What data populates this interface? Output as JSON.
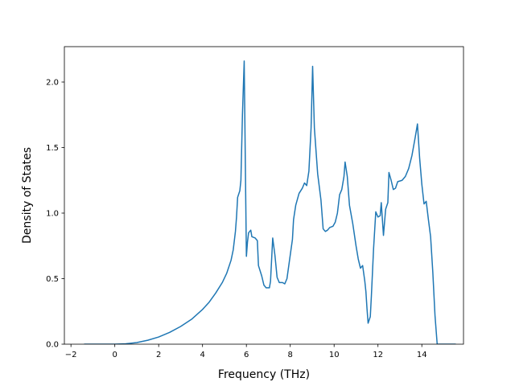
{
  "chart_data": {
    "type": "line",
    "title": "",
    "xlabel": "Frequency (THz)",
    "ylabel": "Density of States",
    "xlim": [
      -2.3,
      15.9
    ],
    "ylim": [
      0.0,
      2.27
    ],
    "xticks": [
      -2,
      0,
      2,
      4,
      6,
      8,
      10,
      12,
      14
    ],
    "xtick_labels": [
      "−2",
      "0",
      "2",
      "4",
      "6",
      "8",
      "10",
      "12",
      "14"
    ],
    "yticks": [
      0.0,
      0.5,
      1.0,
      1.5,
      2.0
    ],
    "ytick_labels": [
      "0.0",
      "0.5",
      "1.0",
      "1.5",
      "2.0"
    ],
    "grid": false,
    "legend": "none",
    "series": [
      {
        "color": "#1f77b4",
        "points": [
          [
            -1.4,
            0.0
          ],
          [
            -0.5,
            0.0
          ],
          [
            0.0,
            0.0
          ],
          [
            0.5,
            0.003
          ],
          [
            1.0,
            0.012
          ],
          [
            1.5,
            0.03
          ],
          [
            2.0,
            0.055
          ],
          [
            2.5,
            0.09
          ],
          [
            3.0,
            0.135
          ],
          [
            3.5,
            0.19
          ],
          [
            4.0,
            0.265
          ],
          [
            4.3,
            0.32
          ],
          [
            4.6,
            0.39
          ],
          [
            4.9,
            0.47
          ],
          [
            5.1,
            0.54
          ],
          [
            5.3,
            0.64
          ],
          [
            5.4,
            0.72
          ],
          [
            5.5,
            0.86
          ],
          [
            5.55,
            0.97
          ],
          [
            5.6,
            1.12
          ],
          [
            5.7,
            1.17
          ],
          [
            5.75,
            1.25
          ],
          [
            5.82,
            1.75
          ],
          [
            5.9,
            2.16
          ],
          [
            5.95,
            1.4
          ],
          [
            6.0,
            0.67
          ],
          [
            6.05,
            0.78
          ],
          [
            6.1,
            0.85
          ],
          [
            6.2,
            0.87
          ],
          [
            6.25,
            0.82
          ],
          [
            6.4,
            0.81
          ],
          [
            6.5,
            0.79
          ],
          [
            6.55,
            0.6
          ],
          [
            6.7,
            0.52
          ],
          [
            6.8,
            0.45
          ],
          [
            6.9,
            0.43
          ],
          [
            7.0,
            0.43
          ],
          [
            7.05,
            0.43
          ],
          [
            7.1,
            0.48
          ],
          [
            7.2,
            0.81
          ],
          [
            7.3,
            0.68
          ],
          [
            7.4,
            0.51
          ],
          [
            7.5,
            0.47
          ],
          [
            7.65,
            0.47
          ],
          [
            7.75,
            0.46
          ],
          [
            7.85,
            0.5
          ],
          [
            8.0,
            0.68
          ],
          [
            8.1,
            0.8
          ],
          [
            8.15,
            0.95
          ],
          [
            8.25,
            1.06
          ],
          [
            8.4,
            1.15
          ],
          [
            8.55,
            1.19
          ],
          [
            8.65,
            1.23
          ],
          [
            8.75,
            1.21
          ],
          [
            8.85,
            1.32
          ],
          [
            8.95,
            1.65
          ],
          [
            9.02,
            2.12
          ],
          [
            9.1,
            1.65
          ],
          [
            9.25,
            1.3
          ],
          [
            9.4,
            1.1
          ],
          [
            9.5,
            0.88
          ],
          [
            9.6,
            0.86
          ],
          [
            9.7,
            0.87
          ],
          [
            9.8,
            0.89
          ],
          [
            9.95,
            0.9
          ],
          [
            10.05,
            0.93
          ],
          [
            10.15,
            1.0
          ],
          [
            10.25,
            1.14
          ],
          [
            10.35,
            1.18
          ],
          [
            10.45,
            1.28
          ],
          [
            10.5,
            1.39
          ],
          [
            10.6,
            1.28
          ],
          [
            10.7,
            1.06
          ],
          [
            10.85,
            0.92
          ],
          [
            11.0,
            0.75
          ],
          [
            11.1,
            0.65
          ],
          [
            11.2,
            0.58
          ],
          [
            11.3,
            0.6
          ],
          [
            11.4,
            0.48
          ],
          [
            11.45,
            0.4
          ],
          [
            11.5,
            0.27
          ],
          [
            11.55,
            0.16
          ],
          [
            11.65,
            0.21
          ],
          [
            11.7,
            0.37
          ],
          [
            11.8,
            0.73
          ],
          [
            11.9,
            1.01
          ],
          [
            12.0,
            0.97
          ],
          [
            12.1,
            0.98
          ],
          [
            12.15,
            1.08
          ],
          [
            12.25,
            0.83
          ],
          [
            12.35,
            1.03
          ],
          [
            12.45,
            1.08
          ],
          [
            12.5,
            1.31
          ],
          [
            12.6,
            1.25
          ],
          [
            12.7,
            1.18
          ],
          [
            12.8,
            1.19
          ],
          [
            12.9,
            1.24
          ],
          [
            13.1,
            1.25
          ],
          [
            13.25,
            1.28
          ],
          [
            13.4,
            1.34
          ],
          [
            13.55,
            1.44
          ],
          [
            13.7,
            1.58
          ],
          [
            13.8,
            1.68
          ],
          [
            13.9,
            1.42
          ],
          [
            14.0,
            1.22
          ],
          [
            14.1,
            1.07
          ],
          [
            14.2,
            1.09
          ],
          [
            14.3,
            0.95
          ],
          [
            14.4,
            0.82
          ],
          [
            14.5,
            0.55
          ],
          [
            14.6,
            0.22
          ],
          [
            14.7,
            0.0
          ],
          [
            15.0,
            0.0
          ],
          [
            15.55,
            0.0
          ]
        ]
      }
    ]
  }
}
